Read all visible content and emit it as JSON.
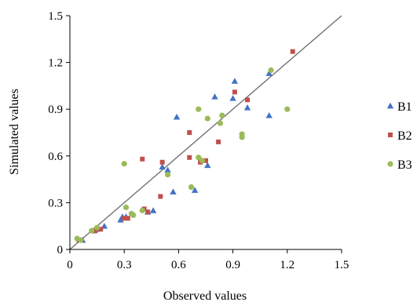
{
  "chart_data": {
    "type": "scatter",
    "title": "",
    "xlabel": "Observed values",
    "ylabel": "Simulated values",
    "xlim": [
      0,
      1.5
    ],
    "ylim": [
      0,
      1.5
    ],
    "xticks": [
      "0",
      "0.3",
      "0.6",
      "0.9",
      "1.2",
      "1.5"
    ],
    "yticks": [
      "0",
      "0.3",
      "0.6",
      "0.9",
      "1.2",
      "1.5"
    ],
    "tick_values": [
      0,
      0.3,
      0.6,
      0.9,
      1.2,
      1.5
    ],
    "grid": false,
    "legend_position": "right",
    "reference_line": {
      "from": [
        0,
        0
      ],
      "to": [
        1.5,
        1.5
      ],
      "color": "#6b6b6b"
    },
    "series": [
      {
        "name": "B1",
        "marker": "triangle",
        "color": "#4472c4",
        "points": [
          [
            0.07,
            0.06
          ],
          [
            0.13,
            0.12
          ],
          [
            0.15,
            0.13
          ],
          [
            0.19,
            0.15
          ],
          [
            0.28,
            0.19
          ],
          [
            0.29,
            0.21
          ],
          [
            0.31,
            0.21
          ],
          [
            0.43,
            0.24
          ],
          [
            0.46,
            0.25
          ],
          [
            0.51,
            0.53
          ],
          [
            0.54,
            0.51
          ],
          [
            0.57,
            0.37
          ],
          [
            0.59,
            0.85
          ],
          [
            0.69,
            0.38
          ],
          [
            0.76,
            0.54
          ],
          [
            0.8,
            0.98
          ],
          [
            0.9,
            0.97
          ],
          [
            0.91,
            1.08
          ],
          [
            0.98,
            0.91
          ],
          [
            1.1,
            1.13
          ],
          [
            1.1,
            0.86
          ]
        ]
      },
      {
        "name": "B2",
        "marker": "square",
        "color": "#c0504d",
        "points": [
          [
            0.05,
            0.06
          ],
          [
            0.14,
            0.12
          ],
          [
            0.17,
            0.13
          ],
          [
            0.3,
            0.2
          ],
          [
            0.32,
            0.2
          ],
          [
            0.4,
            0.58
          ],
          [
            0.41,
            0.26
          ],
          [
            0.43,
            0.24
          ],
          [
            0.5,
            0.34
          ],
          [
            0.51,
            0.56
          ],
          [
            0.66,
            0.75
          ],
          [
            0.66,
            0.59
          ],
          [
            0.72,
            0.56
          ],
          [
            0.75,
            0.57
          ],
          [
            0.82,
            0.69
          ],
          [
            0.91,
            1.01
          ],
          [
            0.98,
            0.96
          ],
          [
            1.23,
            1.27
          ]
        ]
      },
      {
        "name": "B3",
        "marker": "circle",
        "color": "#9bbb59",
        "points": [
          [
            0.04,
            0.07
          ],
          [
            0.06,
            0.06
          ],
          [
            0.12,
            0.12
          ],
          [
            0.15,
            0.14
          ],
          [
            0.3,
            0.55
          ],
          [
            0.31,
            0.27
          ],
          [
            0.34,
            0.23
          ],
          [
            0.35,
            0.22
          ],
          [
            0.4,
            0.25
          ],
          [
            0.54,
            0.48
          ],
          [
            0.67,
            0.4
          ],
          [
            0.71,
            0.9
          ],
          [
            0.71,
            0.59
          ],
          [
            0.73,
            0.57
          ],
          [
            0.76,
            0.84
          ],
          [
            0.83,
            0.81
          ],
          [
            0.84,
            0.86
          ],
          [
            0.95,
            0.74
          ],
          [
            0.95,
            0.72
          ],
          [
            1.11,
            1.15
          ],
          [
            1.2,
            0.9
          ]
        ]
      }
    ]
  }
}
